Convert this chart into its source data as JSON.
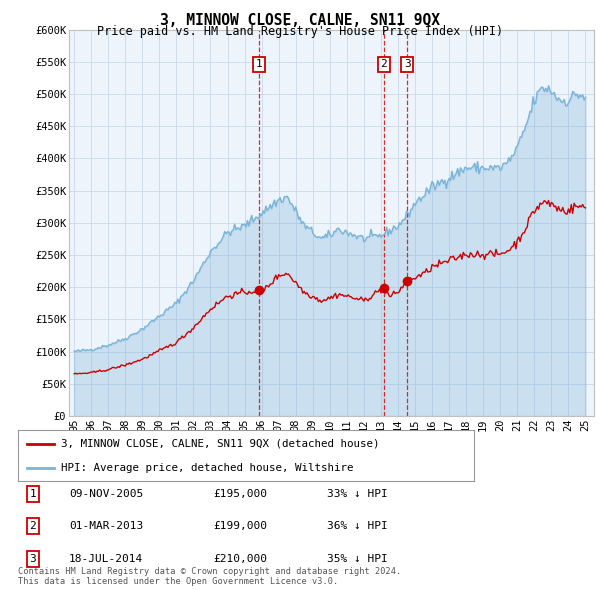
{
  "title": "3, MINNOW CLOSE, CALNE, SN11 9QX",
  "subtitle": "Price paid vs. HM Land Registry's House Price Index (HPI)",
  "hpi_label": "HPI: Average price, detached house, Wiltshire",
  "house_label": "3, MINNOW CLOSE, CALNE, SN11 9QX (detached house)",
  "hpi_color": "#7ab4d8",
  "hpi_fill_color": "#ddeef8",
  "house_color": "#cc0000",
  "vline_color": "#cc0000",
  "background_color": "#ffffff",
  "chart_bg_color": "#f0f4f8",
  "grid_color": "#cccccc",
  "ylim": [
    0,
    600000
  ],
  "yticks": [
    0,
    50000,
    100000,
    150000,
    200000,
    250000,
    300000,
    350000,
    400000,
    450000,
    500000,
    550000,
    600000
  ],
  "ytick_labels": [
    "£0",
    "£50K",
    "£100K",
    "£150K",
    "£200K",
    "£250K",
    "£300K",
    "£350K",
    "£400K",
    "£450K",
    "£500K",
    "£550K",
    "£600K"
  ],
  "transactions": [
    {
      "num": 1,
      "date": "09-NOV-2005",
      "price": 195000,
      "pct": "33%",
      "dir": "↓",
      "year": 2005.86
    },
    {
      "num": 2,
      "date": "01-MAR-2013",
      "price": 199000,
      "pct": "36%",
      "dir": "↓",
      "year": 2013.17
    },
    {
      "num": 3,
      "date": "18-JUL-2014",
      "price": 210000,
      "pct": "35%",
      "dir": "↓",
      "year": 2014.54
    }
  ],
  "footnote1": "Contains HM Land Registry data © Crown copyright and database right 2024.",
  "footnote2": "This data is licensed under the Open Government Licence v3.0.",
  "xlim_min": 1994.7,
  "xlim_max": 2025.5,
  "xtick_years": [
    1995,
    1996,
    1997,
    1998,
    1999,
    2000,
    2001,
    2002,
    2003,
    2004,
    2005,
    2006,
    2007,
    2008,
    2009,
    2010,
    2011,
    2012,
    2013,
    2014,
    2015,
    2016,
    2017,
    2018,
    2019,
    2020,
    2021,
    2022,
    2023,
    2024,
    2025
  ]
}
